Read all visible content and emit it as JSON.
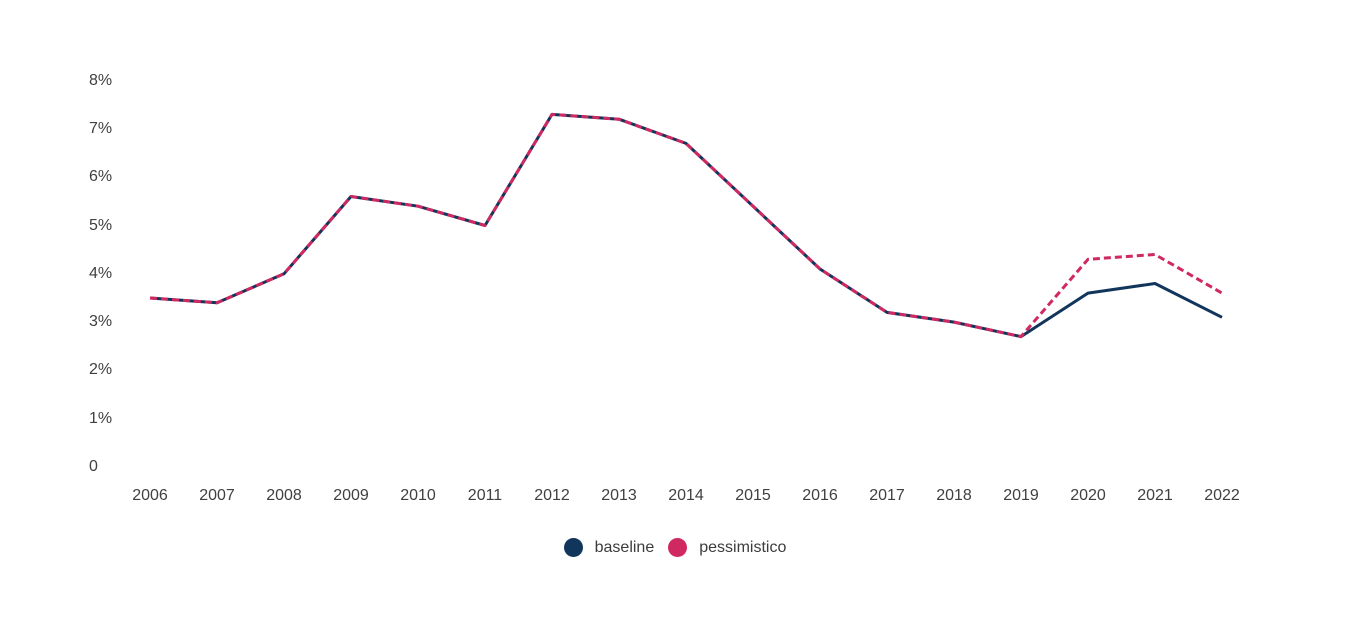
{
  "chart_data": {
    "type": "line",
    "title": "",
    "xlabel": "",
    "ylabel": "",
    "x": [
      2006,
      2007,
      2008,
      2009,
      2010,
      2011,
      2012,
      2013,
      2014,
      2015,
      2016,
      2017,
      2018,
      2019,
      2020,
      2021,
      2022
    ],
    "series": [
      {
        "name": "baseline",
        "color": "#12355b",
        "style": "solid",
        "values": [
          3.5,
          3.4,
          4.0,
          5.6,
          5.4,
          5.0,
          7.3,
          7.2,
          6.7,
          5.4,
          4.1,
          3.2,
          3.0,
          2.7,
          3.6,
          3.8,
          3.1
        ]
      },
      {
        "name": "pessimistico",
        "color": "#d02861",
        "style": "dashed",
        "values": [
          3.5,
          3.4,
          4.0,
          5.6,
          5.4,
          5.0,
          7.3,
          7.2,
          6.7,
          5.4,
          4.1,
          3.2,
          3.0,
          2.7,
          4.3,
          4.4,
          3.6
        ]
      }
    ],
    "ylim": [
      0,
      8
    ],
    "yticks_values": [
      0,
      1,
      2,
      3,
      4,
      5,
      6,
      7,
      8
    ],
    "yticks_labels": [
      "0",
      "1%",
      "2%",
      "3%",
      "4%",
      "5%",
      "6%",
      "7%",
      "8%"
    ],
    "grid": false,
    "legend_position": "bottom-center"
  },
  "legend": {
    "items": [
      {
        "label": "baseline",
        "color": "#12355b"
      },
      {
        "label": "pessimistico",
        "color": "#d02861"
      }
    ]
  },
  "colors": {
    "background": "#ffffff",
    "axis_text": "#404040",
    "baseline_line": "#12355b",
    "pessimistico_line": "#d02861"
  }
}
